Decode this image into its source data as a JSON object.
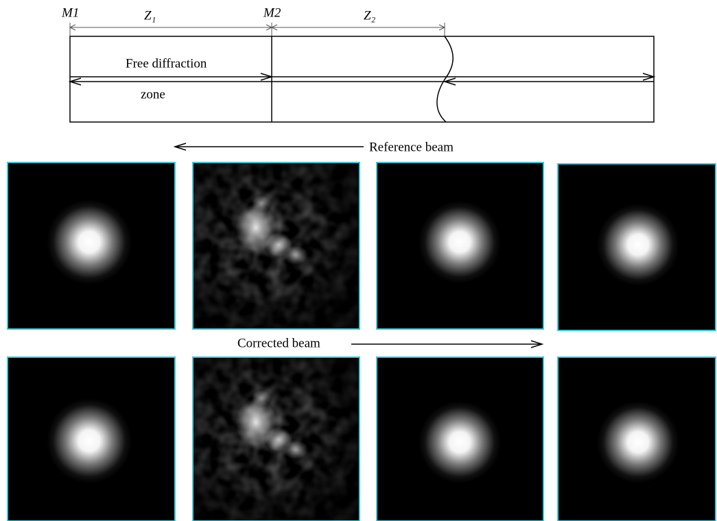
{
  "labels": {
    "m1": "M1",
    "z1": "Z₁",
    "m2": "M2",
    "z2": "Z₂"
  },
  "zone_text": {
    "line1": "Free diffraction",
    "line2": "zone"
  },
  "beams": {
    "reference": "Reference beam",
    "corrected": "Corrected beam"
  }
}
